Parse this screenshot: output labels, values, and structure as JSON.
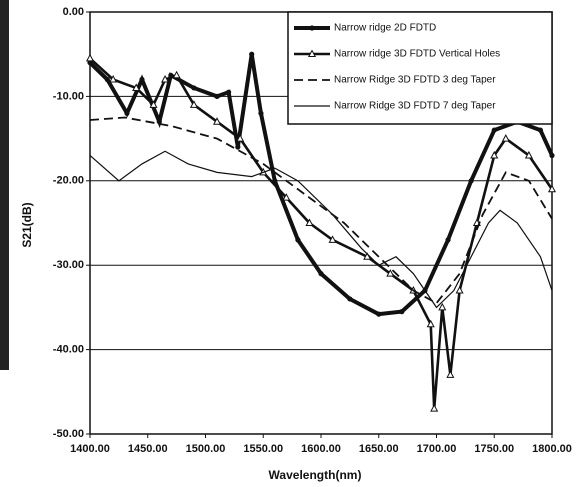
{
  "chart_data": {
    "type": "line",
    "x_label": "Wavelength(nm)",
    "y_label": "S21(dB)",
    "xlim": [
      1400,
      1800
    ],
    "ylim": [
      -50,
      0
    ],
    "xticks": [
      {
        "value": 1400,
        "label": "1400.00"
      },
      {
        "value": 1450,
        "label": "1450.00"
      },
      {
        "value": 1500,
        "label": "1500.00"
      },
      {
        "value": 1550,
        "label": "1550.00"
      },
      {
        "value": 1600,
        "label": "1600.00"
      },
      {
        "value": 1650,
        "label": "1650.00"
      },
      {
        "value": 1700,
        "label": "1700.00"
      },
      {
        "value": 1750,
        "label": "1750.00"
      },
      {
        "value": 1800,
        "label": "1800.00"
      }
    ],
    "yticks": [
      {
        "value": 0,
        "label": "0.00"
      },
      {
        "value": -10,
        "label": "-10.00"
      },
      {
        "value": -20,
        "label": "-20.00"
      },
      {
        "value": -30,
        "label": "-30.00"
      },
      {
        "value": -40,
        "label": "-40.00"
      },
      {
        "value": -50,
        "label": "-50.00"
      }
    ],
    "grid": "y",
    "legend": "top-right",
    "series": [
      {
        "name": "Narrow ridge 2D FDTD",
        "color": "#111111",
        "marker": "circle",
        "dash": false,
        "x": [
          1400,
          1415,
          1432,
          1445,
          1460,
          1470,
          1490,
          1510,
          1520,
          1528,
          1540,
          1548,
          1560,
          1580,
          1600,
          1625,
          1650,
          1670,
          1690,
          1710,
          1730,
          1750,
          1770,
          1790,
          1800
        ],
        "values": [
          -6,
          -8,
          -12,
          -8,
          -13,
          -7.5,
          -9,
          -10,
          -9.5,
          -16,
          -5,
          -12,
          -20,
          -27,
          -31,
          -34,
          -35.8,
          -35.5,
          -33,
          -27,
          -20,
          -14,
          -13,
          -14,
          -17
        ]
      },
      {
        "name": "Narrow ridge 3D FDTD Vertical Holes",
        "color": "#111111",
        "marker": "triangle",
        "dash": false,
        "x": [
          1400,
          1420,
          1440,
          1455,
          1465,
          1475,
          1490,
          1510,
          1530,
          1550,
          1570,
          1590,
          1610,
          1640,
          1660,
          1680,
          1695,
          1698,
          1705,
          1712,
          1720,
          1735,
          1750,
          1760,
          1780,
          1800
        ],
        "values": [
          -5.5,
          -8,
          -9,
          -11,
          -8,
          -7.5,
          -11,
          -13,
          -15,
          -19,
          -22,
          -25,
          -27,
          -29,
          -31,
          -33,
          -37,
          -47,
          -35,
          -43,
          -33,
          -25,
          -17,
          -15,
          -17,
          -21
        ]
      },
      {
        "name": "Narrow Ridge 3D FDTD 3 deg Taper",
        "color": "#111111",
        "marker": "none",
        "dash": true,
        "x": [
          1400,
          1430,
          1470,
          1510,
          1530,
          1550,
          1570,
          1590,
          1620,
          1650,
          1680,
          1700,
          1720,
          1740,
          1760,
          1780,
          1800
        ],
        "values": [
          -12.8,
          -12.5,
          -13.5,
          -15,
          -16.5,
          -18,
          -20,
          -22,
          -25,
          -29,
          -33,
          -34.5,
          -31,
          -24,
          -19,
          -20,
          -24.5
        ]
      },
      {
        "name": "Narrow Ridge 3D FDTD 7 deg Taper",
        "color": "#111111",
        "marker": "none",
        "dash": false,
        "x": [
          1400,
          1425,
          1445,
          1465,
          1485,
          1510,
          1540,
          1560,
          1580,
          1610,
          1635,
          1650,
          1665,
          1680,
          1700,
          1715,
          1730,
          1745,
          1755,
          1770,
          1790,
          1800
        ],
        "values": [
          -17,
          -20,
          -18,
          -16.5,
          -18,
          -19,
          -19.5,
          -18.5,
          -20,
          -24,
          -28,
          -30,
          -29,
          -31,
          -35,
          -33,
          -29,
          -25,
          -23.5,
          -25,
          -29,
          -33
        ]
      }
    ]
  }
}
